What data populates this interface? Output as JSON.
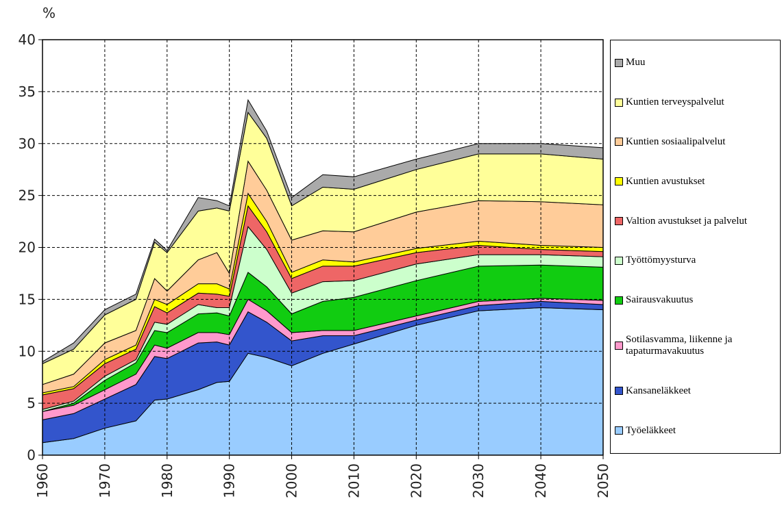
{
  "chart_data": {
    "type": "stacked_area",
    "y_label": "%",
    "x": [
      1960,
      1965,
      1970,
      1975,
      1978,
      1980,
      1985,
      1988,
      1990,
      1993,
      1996,
      2000,
      2005,
      2010,
      2020,
      2030,
      2040,
      2050
    ],
    "xlim": [
      1960,
      2050
    ],
    "xticks": [
      1960,
      1970,
      1980,
      1990,
      2000,
      2010,
      2020,
      2030,
      2040,
      2050
    ],
    "ylim": [
      0,
      40
    ],
    "yticks": [
      0,
      5,
      10,
      15,
      20,
      25,
      30,
      35,
      40
    ],
    "grid": true,
    "series": [
      {
        "name": "Työeläkkeet",
        "color": "#99ccff",
        "values": [
          1.2,
          1.6,
          2.6,
          3.3,
          5.3,
          5.4,
          6.3,
          7.0,
          7.1,
          9.8,
          9.4,
          8.6,
          9.8,
          10.7,
          12.5,
          13.9,
          14.2,
          14.0
        ]
      },
      {
        "name": "Kansaneläkkeet",
        "color": "#3355cc",
        "values": [
          2.2,
          2.4,
          2.8,
          3.5,
          4.2,
          3.9,
          4.5,
          3.9,
          3.5,
          4.0,
          3.4,
          2.4,
          1.7,
          0.8,
          0.5,
          0.5,
          0.6,
          0.5
        ]
      },
      {
        "name": "Sotilasvamma, liikenne ja tapaturmavakuutus",
        "color": "#ff99cc",
        "values": [
          0.8,
          0.8,
          0.9,
          1.0,
          1.1,
          1.0,
          1.0,
          0.9,
          1.0,
          1.2,
          1.1,
          0.8,
          0.5,
          0.5,
          0.4,
          0.4,
          0.3,
          0.4
        ]
      },
      {
        "name": "Sairausvakuutus",
        "color": "#11cc11",
        "values": [
          0,
          0.2,
          0.9,
          1.1,
          1.4,
          1.5,
          1.8,
          1.9,
          1.8,
          2.6,
          2.3,
          1.8,
          2.8,
          3.2,
          3.4,
          3.4,
          3.2,
          3.2
        ]
      },
      {
        "name": "Työttömyysturva",
        "color": "#ccffcc",
        "values": [
          0.2,
          0.2,
          0.4,
          0.3,
          0.8,
          0.8,
          0.9,
          0.5,
          0.8,
          4.4,
          3.6,
          2.0,
          1.9,
          1.6,
          1.6,
          1.1,
          1.0,
          1.0
        ]
      },
      {
        "name": "Valtion avustukset ja palvelut",
        "color": "#ee6666",
        "values": [
          1.4,
          1.2,
          1.2,
          1.0,
          1.5,
          1.1,
          1.1,
          1.3,
          1.1,
          2.0,
          1.7,
          1.4,
          1.5,
          1.4,
          1.1,
          0.9,
          0.5,
          0.5
        ]
      },
      {
        "name": "Kuntien avustukset",
        "color": "#ffff00",
        "values": [
          0.2,
          0.2,
          0.4,
          0.4,
          0.7,
          0.8,
          0.9,
          1.0,
          0.7,
          1.2,
          1.0,
          0.6,
          0.6,
          0.4,
          0.4,
          0.4,
          0.4,
          0.4
        ]
      },
      {
        "name": "Kuntien sosiaalipalvelut",
        "color": "#ffcc99",
        "values": [
          0.8,
          1.2,
          1.6,
          1.4,
          2.0,
          1.3,
          2.3,
          3.0,
          1.5,
          3.1,
          3.0,
          3.1,
          2.8,
          2.9,
          3.5,
          3.9,
          4.2,
          4.1
        ]
      },
      {
        "name": "Kuntien terveyspalvelut",
        "color": "#ffff99",
        "values": [
          2.0,
          2.4,
          2.7,
          3.0,
          3.5,
          3.7,
          4.7,
          4.3,
          6.0,
          4.7,
          5.0,
          3.3,
          4.2,
          4.1,
          4.1,
          4.5,
          4.6,
          4.4
        ]
      },
      {
        "name": "Muu",
        "color": "#aaaaaa",
        "values": [
          0.2,
          0.6,
          0.5,
          0.5,
          0.3,
          0.2,
          1.3,
          0.7,
          0.5,
          1.2,
          0.7,
          0.8,
          1.2,
          1.2,
          1.0,
          1.0,
          1.0,
          1.1
        ]
      }
    ]
  }
}
